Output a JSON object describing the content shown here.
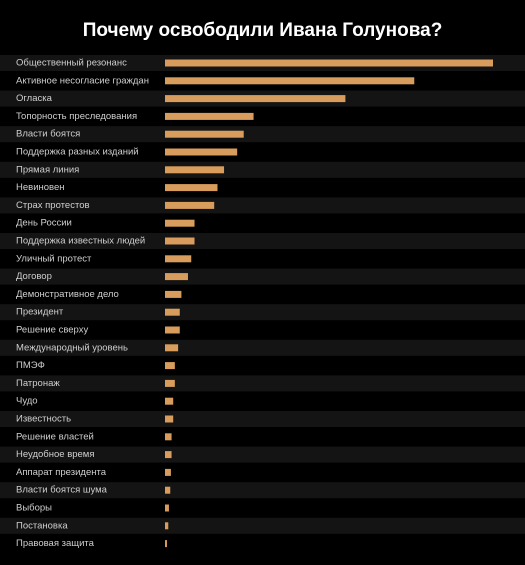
{
  "chart_data": {
    "type": "bar",
    "orientation": "horizontal",
    "title": "Почему освободили Ивана Голунова?",
    "categories": [
      "Общественный резонанс",
      "Активное несогласие граждан",
      "Огласка",
      "Топорность преследования",
      "Власти боятся",
      "Поддержка разных изданий",
      "Прямая линия",
      "Невиновен",
      "Страх протестов",
      "День России",
      "Поддержка известных людей",
      "Уличный протест",
      "Договор",
      "Демонстративное дело",
      "Президент",
      "Решение сверху",
      "Международный уровень",
      "ПМЭФ",
      "Патронаж",
      "Чудо",
      "Известность",
      "Решение властей",
      "Неудобное время",
      "Аппарат президента",
      "Власти боятся шума",
      "Выборы",
      "Постановка",
      "Правовая защита"
    ],
    "values": [
      100,
      76,
      55,
      27,
      24,
      22,
      18,
      16,
      15,
      9,
      9,
      8,
      7,
      5,
      4.5,
      4.5,
      4,
      3,
      3,
      2.5,
      2.5,
      2,
      2,
      1.8,
      1.6,
      1.2,
      1,
      0.6
    ],
    "xlim": [
      0,
      100
    ],
    "grid": false,
    "legend": "none",
    "colors": {
      "background": "#000000",
      "bar": "#d89d5c",
      "label": "#cfcfcf",
      "title": "#ffffff",
      "row_alt": "#141414"
    }
  }
}
